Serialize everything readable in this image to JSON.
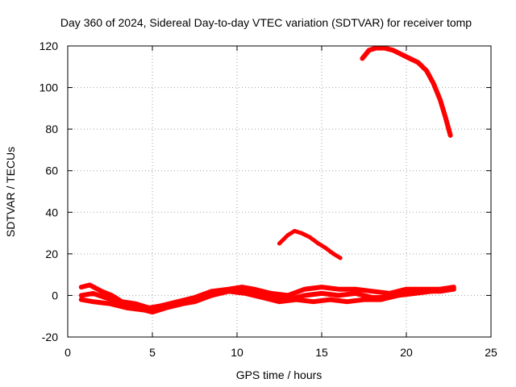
{
  "chart_data": {
    "type": "line",
    "title": "Day 360 of 2024, Sidereal Day-to-day VTEC variation (SDTVAR) for receiver tomp",
    "xlabel": "GPS time / hours",
    "ylabel": "SDTVAR / TECUs",
    "xlim": [
      0,
      25
    ],
    "ylim": [
      -20,
      120
    ],
    "xticks": [
      0,
      5,
      10,
      15,
      20,
      25
    ],
    "yticks": [
      -20,
      0,
      20,
      40,
      60,
      80,
      100,
      120
    ],
    "xtick_labels": [
      "0",
      "5",
      "10",
      "15",
      "20",
      "25"
    ],
    "ytick_labels": [
      "-20",
      "0",
      "20",
      "40",
      "60",
      "80",
      "100",
      "120"
    ],
    "grid": true,
    "legend": "none",
    "color": "#ff0000",
    "series": [
      {
        "name": "band-upper",
        "x": [
          0.8,
          1.3,
          2.0,
          2.6,
          3.2,
          4.0,
          4.8,
          5.5,
          6.5,
          7.5,
          8.5,
          9.5,
          10.3,
          11.0,
          12.0,
          13.0,
          14.0,
          15.0,
          16.0,
          17.0,
          18.0,
          19.0,
          20.0,
          21.0,
          22.0,
          22.8
        ],
        "y": [
          4,
          5,
          2,
          0,
          -3,
          -4,
          -6,
          -5,
          -3,
          -1,
          2,
          3,
          4,
          3,
          1,
          0,
          3,
          4,
          3,
          3,
          2,
          1,
          3,
          3,
          3,
          4
        ]
      },
      {
        "name": "band-middle",
        "x": [
          0.8,
          1.5,
          2.2,
          3.0,
          4.0,
          5.0,
          6.0,
          7.0,
          8.0,
          9.0,
          10.0,
          11.0,
          12.0,
          13.0,
          14.0,
          15.0,
          16.0,
          17.0,
          18.0,
          19.0,
          20.0,
          21.0,
          22.0,
          22.8
        ],
        "y": [
          0,
          1,
          -1,
          -3,
          -5,
          -7,
          -5,
          -3,
          -1,
          2,
          3,
          2,
          0,
          -2,
          0,
          1,
          0,
          1,
          -1,
          -1,
          1,
          2,
          2,
          3
        ]
      },
      {
        "name": "band-lower",
        "x": [
          0.8,
          1.5,
          2.5,
          3.5,
          4.5,
          5.0,
          5.8,
          6.8,
          7.5,
          8.5,
          9.5,
          10.5,
          11.5,
          12.5,
          13.5,
          14.5,
          15.5,
          16.5,
          17.5,
          18.5,
          19.5,
          20.5,
          21.5,
          22.8
        ],
        "y": [
          -2,
          -3,
          -4,
          -6,
          -7,
          -8,
          -6,
          -4,
          -3,
          0,
          2,
          1,
          -1,
          -3,
          -2,
          -3,
          -2,
          -3,
          -2,
          -2,
          0,
          1,
          2,
          3
        ]
      },
      {
        "name": "arc-13h",
        "x": [
          12.5,
          13.0,
          13.4,
          13.8,
          14.3,
          14.8,
          15.2,
          15.7,
          16.1
        ],
        "y": [
          25,
          29,
          31,
          30,
          28,
          25,
          23,
          20,
          18
        ]
      },
      {
        "name": "arc-18h",
        "x": [
          17.4,
          17.8,
          18.2,
          18.7,
          19.2,
          19.7,
          20.2,
          20.7,
          21.2,
          21.6,
          22.0,
          22.3,
          22.6
        ],
        "y": [
          114,
          118,
          119,
          119,
          118,
          116,
          114,
          112,
          108,
          102,
          94,
          86,
          77
        ]
      }
    ]
  }
}
